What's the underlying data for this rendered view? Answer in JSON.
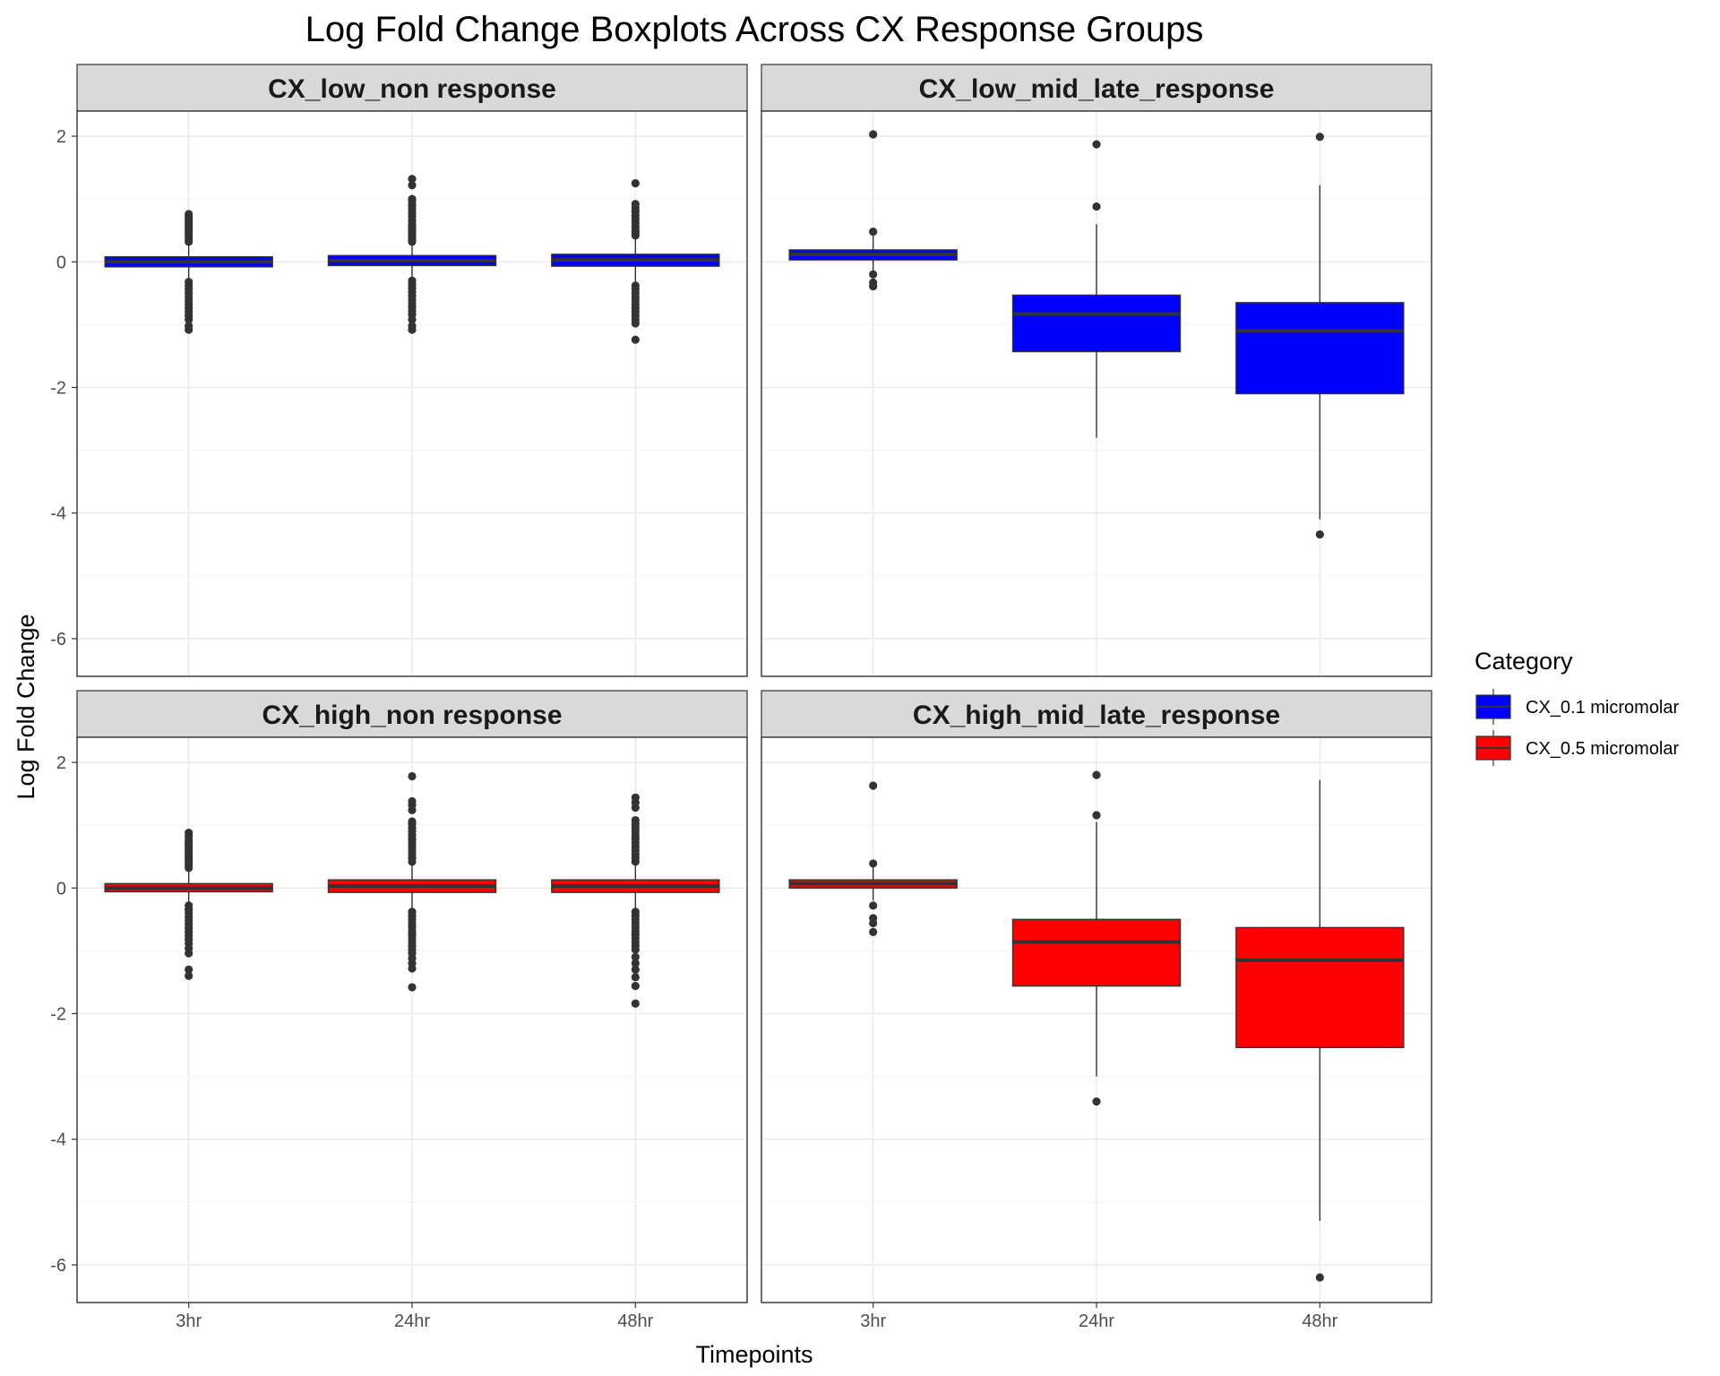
{
  "chart_data": {
    "type": "boxplot",
    "title": "Log Fold Change Boxplots Across CX Response Groups",
    "xlabel": "Timepoints",
    "ylabel": "Log Fold Change",
    "categories": [
      "3hr",
      "24hr",
      "48hr"
    ],
    "ylim": [
      -6.6,
      2.4
    ],
    "yticks": [
      2,
      0,
      -2,
      -4,
      -6
    ],
    "ytick_labels": [
      "2",
      "0",
      "-2",
      "-4",
      "-6"
    ],
    "grid": true,
    "legend": {
      "title": "Category",
      "position": "right",
      "items": [
        {
          "label": "CX_0.1 micromolar",
          "color": "#0000ff"
        },
        {
          "label": "CX_0.5 micromolar",
          "color": "#ff0000"
        }
      ]
    },
    "panels": [
      {
        "name": "CX_low_non response",
        "fill": "#0000ff",
        "boxes": [
          {
            "x": "3hr",
            "q1": -0.08,
            "median": 0.0,
            "q3": 0.08,
            "whisker_low": -0.3,
            "whisker_high": 0.3,
            "outliers": [
              0.32,
              0.36,
              0.4,
              0.44,
              0.48,
              0.52,
              0.56,
              0.6,
              0.64,
              0.68,
              0.72,
              0.76,
              -0.32,
              -0.38,
              -0.44,
              -0.5,
              -0.56,
              -0.62,
              -0.68,
              -0.74,
              -0.8,
              -0.86,
              -0.92,
              -1.02,
              -1.08
            ]
          },
          {
            "x": "24hr",
            "q1": -0.06,
            "median": 0.02,
            "q3": 0.1,
            "whisker_low": -0.27,
            "whisker_high": 0.3,
            "outliers": [
              0.32,
              0.36,
              0.4,
              0.44,
              0.48,
              0.52,
              0.56,
              0.6,
              0.66,
              0.72,
              0.78,
              0.84,
              0.9,
              0.96,
              1.0,
              1.22,
              1.32,
              -0.3,
              -0.36,
              -0.42,
              -0.48,
              -0.54,
              -0.6,
              -0.66,
              -0.72,
              -0.78,
              -0.84,
              -0.92,
              -1.02,
              -1.08
            ]
          },
          {
            "x": "48hr",
            "q1": -0.07,
            "median": 0.03,
            "q3": 0.12,
            "whisker_low": -0.34,
            "whisker_high": 0.4,
            "outliers": [
              0.42,
              0.46,
              0.5,
              0.56,
              0.62,
              0.68,
              0.74,
              0.8,
              0.86,
              0.92,
              1.25,
              -0.38,
              -0.44,
              -0.5,
              -0.56,
              -0.62,
              -0.68,
              -0.74,
              -0.8,
              -0.86,
              -0.92,
              -0.98,
              -1.24
            ]
          }
        ]
      },
      {
        "name": "CX_low_mid_late_response",
        "fill": "#0000ff",
        "boxes": [
          {
            "x": "3hr",
            "q1": 0.03,
            "median": 0.12,
            "q3": 0.19,
            "whisker_low": -0.2,
            "whisker_high": 0.45,
            "outliers": [
              2.03,
              0.48,
              -0.2,
              -0.33,
              -0.39
            ]
          },
          {
            "x": "24hr",
            "q1": -1.43,
            "median": -0.83,
            "q3": -0.53,
            "whisker_low": -2.8,
            "whisker_high": 0.6,
            "outliers": [
              1.87,
              0.88
            ]
          },
          {
            "x": "48hr",
            "q1": -2.1,
            "median": -1.1,
            "q3": -0.65,
            "whisker_low": -4.1,
            "whisker_high": 1.22,
            "outliers": [
              1.99,
              -4.34
            ]
          }
        ]
      },
      {
        "name": "CX_high_non response",
        "fill": "#ff0000",
        "boxes": [
          {
            "x": "3hr",
            "q1": -0.06,
            "median": 0.0,
            "q3": 0.07,
            "whisker_low": -0.26,
            "whisker_high": 0.28,
            "outliers": [
              0.32,
              0.36,
              0.4,
              0.44,
              0.48,
              0.52,
              0.56,
              0.6,
              0.64,
              0.68,
              0.72,
              0.76,
              0.82,
              0.88,
              -0.28,
              -0.34,
              -0.4,
              -0.46,
              -0.52,
              -0.58,
              -0.64,
              -0.7,
              -0.76,
              -0.82,
              -0.88,
              -0.96,
              -1.04,
              -1.3,
              -1.4
            ]
          },
          {
            "x": "24hr",
            "q1": -0.07,
            "median": 0.03,
            "q3": 0.13,
            "whisker_low": -0.35,
            "whisker_high": 0.4,
            "outliers": [
              0.42,
              0.48,
              0.54,
              0.6,
              0.66,
              0.72,
              0.78,
              0.84,
              0.9,
              0.96,
              1.02,
              1.06,
              1.24,
              1.32,
              1.38,
              1.78,
              -0.38,
              -0.44,
              -0.5,
              -0.56,
              -0.62,
              -0.68,
              -0.74,
              -0.8,
              -0.86,
              -0.92,
              -0.98,
              -1.04,
              -1.12,
              -1.2,
              -1.28,
              -1.58
            ]
          },
          {
            "x": "48hr",
            "q1": -0.07,
            "median": 0.03,
            "q3": 0.13,
            "whisker_low": -0.34,
            "whisker_high": 0.4,
            "outliers": [
              0.42,
              0.48,
              0.54,
              0.6,
              0.66,
              0.72,
              0.78,
              0.84,
              0.9,
              0.96,
              1.02,
              1.08,
              1.28,
              1.36,
              1.44,
              -0.38,
              -0.44,
              -0.5,
              -0.56,
              -0.62,
              -0.68,
              -0.74,
              -0.8,
              -0.86,
              -0.92,
              -0.98,
              -1.1,
              -1.2,
              -1.3,
              -1.42,
              -1.56,
              -1.84
            ]
          }
        ]
      },
      {
        "name": "CX_high_mid_late_response",
        "fill": "#ff0000",
        "boxes": [
          {
            "x": "3hr",
            "q1": 0.0,
            "median": 0.07,
            "q3": 0.13,
            "whisker_low": -0.2,
            "whisker_high": 0.36,
            "outliers": [
              1.63,
              0.39,
              -0.28,
              -0.48,
              -0.56,
              -0.7
            ]
          },
          {
            "x": "24hr",
            "q1": -1.56,
            "median": -0.86,
            "q3": -0.5,
            "whisker_low": -3.0,
            "whisker_high": 1.05,
            "outliers": [
              1.8,
              1.16,
              -3.4
            ]
          },
          {
            "x": "48hr",
            "q1": -2.54,
            "median": -1.15,
            "q3": -0.63,
            "whisker_low": -5.3,
            "whisker_high": 1.72,
            "outliers": [
              -6.2
            ]
          }
        ]
      }
    ]
  }
}
